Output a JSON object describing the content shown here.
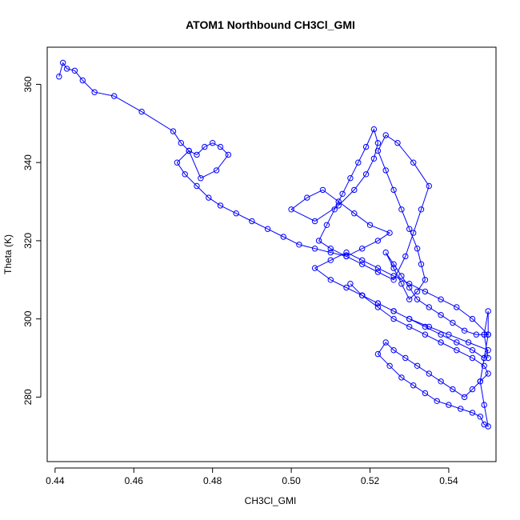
{
  "chart_data": {
    "type": "line",
    "title": "ATOM1 Northbound CH3Cl_GMI",
    "xlabel": "CH3Cl_GMI",
    "ylabel": "Theta (K)",
    "xlim": [
      0.438,
      0.552
    ],
    "ylim": [
      263.5,
      369.5
    ],
    "xticks": [
      0.44,
      0.46,
      0.48,
      0.5,
      0.52,
      0.54
    ],
    "xtick_labels": [
      "0.44",
      "0.46",
      "0.48",
      "0.50",
      "0.52",
      "0.54"
    ],
    "yticks": [
      280,
      300,
      320,
      340,
      360
    ],
    "ytick_labels": [
      "280",
      "300",
      "320",
      "340",
      "360"
    ],
    "grid": false,
    "series_color": "#0000ff",
    "marker": "open-circle",
    "series": [
      {
        "x": [
          0.441,
          0.442,
          0.443,
          0.445,
          0.447,
          0.45,
          0.455,
          0.462,
          0.47,
          0.472,
          0.474,
          0.476,
          0.478,
          0.48,
          0.482,
          0.484,
          0.481,
          0.477,
          0.474,
          0.471,
          0.473,
          0.476,
          0.479,
          0.482,
          0.486,
          0.49,
          0.494,
          0.498,
          0.502,
          0.506,
          0.51,
          0.514,
          0.518,
          0.522,
          0.525,
          0.52,
          0.516,
          0.512,
          0.508,
          0.504,
          0.5,
          0.506,
          0.512,
          0.516,
          0.519,
          0.521,
          0.522,
          0.521,
          0.519,
          0.517,
          0.515,
          0.513,
          0.511,
          0.509,
          0.507,
          0.51,
          0.514,
          0.518,
          0.522,
          0.526,
          0.529,
          0.531,
          0.533,
          0.535,
          0.531,
          0.527,
          0.524,
          0.522,
          0.524,
          0.526,
          0.528,
          0.53,
          0.532,
          0.533,
          0.534,
          0.532,
          0.53,
          0.528,
          0.526,
          0.524,
          0.526,
          0.528,
          0.53,
          0.532,
          0.535,
          0.538,
          0.541,
          0.544,
          0.547,
          0.549,
          0.55,
          0.546,
          0.542,
          0.538,
          0.534,
          0.53,
          0.526,
          0.522,
          0.518,
          0.514,
          0.51,
          0.506,
          0.51,
          0.514,
          0.518,
          0.522,
          0.526,
          0.53,
          0.534,
          0.538,
          0.542,
          0.546,
          0.549,
          0.55,
          0.545,
          0.54,
          0.535,
          0.53,
          0.526,
          0.522,
          0.518,
          0.515,
          0.518,
          0.522,
          0.526,
          0.53,
          0.534,
          0.538,
          0.542,
          0.546,
          0.549,
          0.55,
          0.548,
          0.546,
          0.544,
          0.541,
          0.538,
          0.535,
          0.532,
          0.529,
          0.526,
          0.524,
          0.522,
          0.525,
          0.528,
          0.531,
          0.534,
          0.537,
          0.54,
          0.543,
          0.546,
          0.548,
          0.549,
          0.55,
          0.549,
          0.548,
          0.549,
          0.55,
          0.55,
          0.549,
          0.55
        ],
        "y": [
          362,
          365.5,
          364,
          363.5,
          361,
          358,
          357,
          353,
          348,
          345,
          343,
          342,
          344,
          345,
          344,
          342,
          338,
          336,
          343,
          340,
          337,
          334,
          331,
          329,
          327,
          325,
          323,
          321,
          319,
          318,
          317,
          316,
          318,
          320,
          322,
          324,
          327,
          330,
          333,
          331,
          328,
          325,
          329,
          333,
          337,
          341,
          345,
          348.5,
          344,
          340,
          336,
          332,
          328,
          324,
          320,
          318,
          316,
          314,
          312,
          310,
          316,
          322,
          328,
          334,
          340,
          345,
          347,
          343,
          338,
          333,
          328,
          323,
          318,
          314,
          310,
          307,
          305,
          309,
          313,
          317,
          314,
          311,
          308,
          305,
          303,
          301,
          299,
          297,
          296,
          296,
          296,
          300,
          303,
          305,
          307,
          309,
          311,
          313,
          315,
          317,
          315,
          313,
          310,
          308,
          306,
          304,
          302,
          300,
          298,
          296,
          294,
          292,
          290,
          292,
          294,
          296,
          298,
          300,
          302,
          304,
          306,
          309,
          306,
          303,
          300,
          298,
          296,
          294,
          292,
          290,
          288,
          286,
          284,
          282,
          280,
          282,
          284,
          286,
          288,
          290,
          292,
          294,
          291,
          288,
          285,
          283,
          281,
          279,
          278,
          277,
          276,
          275,
          273,
          272.5,
          278,
          284,
          290,
          296,
          302,
          296,
          290
        ]
      }
    ]
  }
}
